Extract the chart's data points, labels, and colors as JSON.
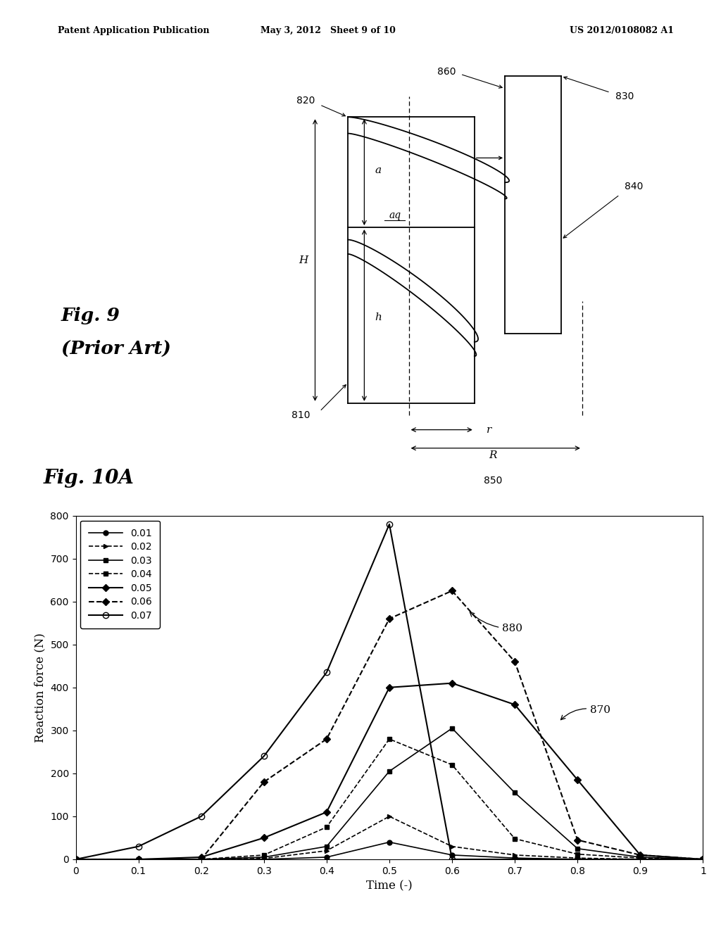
{
  "header_left": "Patent Application Publication",
  "header_mid": "May 3, 2012   Sheet 9 of 10",
  "header_right": "US 2012/0108082 A1",
  "chart": {
    "xlabel": "Time (-)",
    "ylabel": "Reaction force (N)",
    "xlim": [
      0,
      1
    ],
    "ylim": [
      0,
      800
    ],
    "xticks": [
      0,
      0.1,
      0.2,
      0.3,
      0.4,
      0.5,
      0.6,
      0.7,
      0.8,
      0.9,
      1
    ],
    "yticks": [
      0,
      100,
      200,
      300,
      400,
      500,
      600,
      700,
      800
    ],
    "series": [
      {
        "label": "0.01",
        "style": "-",
        "marker": "o",
        "color": "black",
        "markersize": 5,
        "linewidth": 1.2,
        "data_x": [
          0,
          0.1,
          0.2,
          0.3,
          0.4,
          0.5,
          0.6,
          0.7,
          0.8,
          0.9,
          1.0
        ],
        "data_y": [
          0,
          0,
          0,
          0,
          5,
          40,
          10,
          3,
          0,
          0,
          0
        ]
      },
      {
        "label": "0.02",
        "style": "--",
        "marker": "^",
        "color": "black",
        "markersize": 5,
        "linewidth": 1.2,
        "data_x": [
          0,
          0.1,
          0.2,
          0.3,
          0.4,
          0.5,
          0.6,
          0.7,
          0.8,
          0.9,
          1.0
        ],
        "data_y": [
          0,
          0,
          0,
          2,
          20,
          100,
          30,
          10,
          3,
          0,
          0
        ]
      },
      {
        "label": "0.03",
        "style": "-",
        "marker": "s",
        "color": "black",
        "markersize": 5,
        "linewidth": 1.2,
        "data_x": [
          0,
          0.1,
          0.2,
          0.3,
          0.4,
          0.5,
          0.6,
          0.7,
          0.8,
          0.9,
          1.0
        ],
        "data_y": [
          0,
          0,
          0,
          5,
          30,
          205,
          305,
          155,
          25,
          5,
          0
        ]
      },
      {
        "label": "0.04",
        "style": "--",
        "marker": "s",
        "color": "black",
        "markersize": 5,
        "linewidth": 1.2,
        "data_x": [
          0,
          0.1,
          0.2,
          0.3,
          0.4,
          0.5,
          0.6,
          0.7,
          0.8,
          0.9,
          1.0
        ],
        "data_y": [
          0,
          0,
          0,
          10,
          75,
          280,
          220,
          48,
          12,
          3,
          0
        ]
      },
      {
        "label": "0.05",
        "style": "-",
        "marker": "D",
        "color": "black",
        "markersize": 5,
        "linewidth": 1.5,
        "data_x": [
          0,
          0.1,
          0.2,
          0.3,
          0.4,
          0.5,
          0.6,
          0.7,
          0.8,
          0.9,
          1.0
        ],
        "data_y": [
          0,
          0,
          5,
          50,
          110,
          400,
          410,
          360,
          185,
          10,
          0
        ]
      },
      {
        "label": "0.06",
        "style": "--",
        "marker": "D",
        "color": "black",
        "markersize": 5,
        "linewidth": 1.5,
        "data_x": [
          0,
          0.1,
          0.2,
          0.3,
          0.4,
          0.5,
          0.6,
          0.7,
          0.8,
          0.9,
          1.0
        ],
        "data_y": [
          0,
          0,
          0,
          180,
          280,
          560,
          625,
          460,
          45,
          10,
          0
        ]
      },
      {
        "label": "0.07",
        "style": "-",
        "marker": "o",
        "color": "black",
        "markersize": 6,
        "linewidth": 1.5,
        "fillstyle": "none",
        "data_x": [
          0,
          0.1,
          0.2,
          0.3,
          0.4,
          0.5,
          0.6,
          0.7,
          0.8,
          0.9,
          1.0
        ],
        "data_y": [
          0,
          30,
          100,
          240,
          435,
          780,
          0,
          0,
          0,
          0,
          0
        ]
      }
    ]
  },
  "background_color": "#ffffff"
}
